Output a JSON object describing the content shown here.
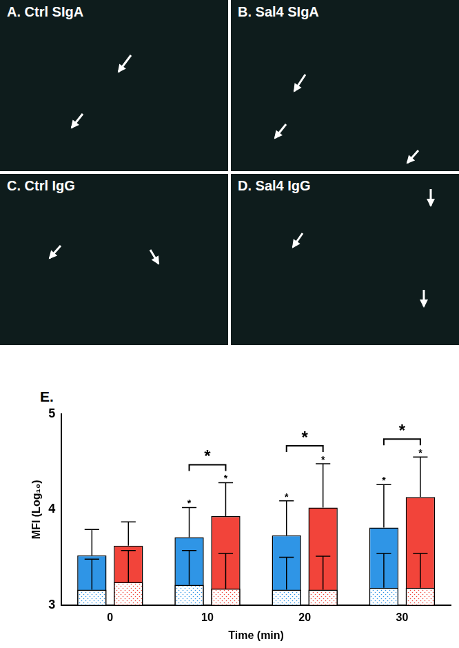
{
  "panels": [
    {
      "label": "A. Ctrl SIgA"
    },
    {
      "label": "B. Sal4 SIgA"
    },
    {
      "label": "C. Ctrl IgG"
    },
    {
      "label": "D. Sal4 IgG"
    }
  ],
  "chart_data": {
    "type": "bar",
    "panel_label": "E.",
    "categories": [
      "0",
      "10",
      "20",
      "30"
    ],
    "x_label": "Time (min)",
    "y_label": "MFI (Log₁₀)",
    "ylim": [
      3,
      5
    ],
    "yticks": [
      3,
      4,
      5
    ],
    "grid": false,
    "series": [
      {
        "color": "#2f95e6",
        "marker": "solid",
        "values": [
          3.52,
          3.71,
          3.73,
          3.81
        ],
        "errors": [
          0.27,
          0.31,
          0.36,
          0.45
        ],
        "significance": [
          null,
          "*",
          "*",
          "*"
        ]
      },
      {
        "color": "#2f95e6",
        "marker": "dots",
        "values": [
          3.16,
          3.21,
          3.16,
          3.18
        ],
        "errors": [
          0.32,
          0.36,
          0.34,
          0.36
        ]
      },
      {
        "color": "#f2443a",
        "marker": "solid",
        "values": [
          3.62,
          3.93,
          4.02,
          4.13
        ],
        "errors": [
          0.25,
          0.35,
          0.46,
          0.42
        ],
        "significance": [
          null,
          "*",
          "*",
          "*"
        ]
      },
      {
        "color": "#f2443a",
        "marker": "dots",
        "values": [
          3.24,
          3.17,
          3.16,
          3.18
        ],
        "errors": [
          0.33,
          0.37,
          0.35,
          0.36
        ]
      }
    ],
    "comparisons": [
      {
        "category": "10",
        "label": "*"
      },
      {
        "category": "20",
        "label": "*"
      },
      {
        "category": "30",
        "label": "*"
      }
    ]
  }
}
